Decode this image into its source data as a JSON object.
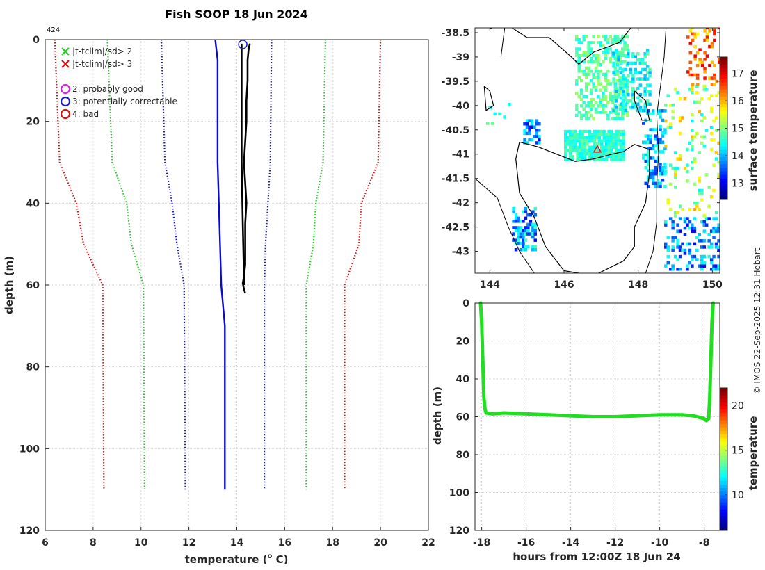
{
  "title": "Fish SOOP 18 Jun 2024",
  "profile_id": "424",
  "credit": "© IMOS 22-Sep-2025 12:31 Hobart",
  "colors": {
    "clim2": "#22cc22",
    "clim3": "#dd1111",
    "clim1": "#1a1ad6",
    "obs": "#000000",
    "mean": "#0a0acc",
    "track": "#22dd22"
  },
  "chart_data": [
    {
      "type": "line",
      "name": "profile",
      "xlabel": "temperature (°C)",
      "xlabel_main": "temperature (",
      "xlabel_sup": "o",
      "xlabel_tail": " C)",
      "ylabel": "depth (m)",
      "xlim": [
        6,
        22
      ],
      "ylim": [
        0,
        120
      ],
      "xticks": [
        "6",
        "8",
        "10",
        "12",
        "14",
        "16",
        "18",
        "20",
        "22"
      ],
      "yticks": [
        "0",
        "20",
        "40",
        "60",
        "80",
        "100",
        "120"
      ],
      "legend": [
        {
          "symbol": "x",
          "color": "#22cc22",
          "label": "|t-tclim|/sd> 2"
        },
        {
          "symbol": "x",
          "color": "#dd1111",
          "label": "|t-tclim|/sd> 3"
        },
        {
          "symbol": "o",
          "color": "#dd22dd",
          "label": "2: probably good"
        },
        {
          "symbol": "o",
          "color": "#1a1ad6",
          "label": "3: potentially correctable"
        },
        {
          "symbol": "o",
          "color": "#dd1111",
          "label": "4: bad"
        }
      ],
      "series": [
        {
          "name": "clim -3sd",
          "style": "dotted",
          "color": "#dd1111",
          "depth": [
            0,
            30,
            40,
            50,
            60,
            110
          ],
          "temp": [
            6.4,
            6.6,
            7.3,
            7.6,
            8.4,
            8.45
          ]
        },
        {
          "name": "clim -2sd",
          "style": "dotted",
          "color": "#22cc22",
          "depth": [
            0,
            30,
            40,
            50,
            60,
            110
          ],
          "temp": [
            8.6,
            8.8,
            9.4,
            9.6,
            10.1,
            10.15
          ]
        },
        {
          "name": "clim -1sd",
          "style": "dotted",
          "color": "#1a1ad6",
          "depth": [
            0,
            30,
            40,
            50,
            60,
            110
          ],
          "temp": [
            10.85,
            11.0,
            11.3,
            11.5,
            11.8,
            11.85
          ]
        },
        {
          "name": "clim mean",
          "style": "solid",
          "color": "#0a0acc",
          "depth": [
            0,
            5,
            30,
            40,
            50,
            60,
            70,
            110
          ],
          "temp": [
            13.1,
            13.2,
            13.2,
            13.25,
            13.3,
            13.35,
            13.5,
            13.5
          ]
        },
        {
          "name": "clim +1sd",
          "style": "dotted",
          "color": "#1a1ad6",
          "depth": [
            0,
            30,
            40,
            50,
            60,
            110
          ],
          "temp": [
            15.45,
            15.4,
            15.3,
            15.2,
            15.15,
            15.15
          ]
        },
        {
          "name": "clim +2sd",
          "style": "dotted",
          "color": "#22cc22",
          "depth": [
            0,
            30,
            40,
            50,
            60,
            110
          ],
          "temp": [
            17.7,
            17.6,
            17.3,
            17.2,
            16.9,
            16.9
          ]
        },
        {
          "name": "clim +3sd",
          "style": "dotted",
          "color": "#dd1111",
          "depth": [
            0,
            30,
            40,
            50,
            60,
            110
          ],
          "temp": [
            20.0,
            19.9,
            19.2,
            19.1,
            18.5,
            18.5
          ]
        },
        {
          "name": "observed",
          "style": "solid",
          "color": "#000000",
          "depth": [
            1,
            2,
            5,
            10,
            15,
            20,
            25,
            30,
            35,
            40,
            45,
            50,
            55,
            58,
            59.5,
            61,
            62
          ],
          "temp": [
            14.55,
            14.5,
            14.45,
            14.45,
            14.4,
            14.4,
            14.35,
            14.3,
            14.35,
            14.4,
            14.35,
            14.35,
            14.35,
            14.3,
            14.25,
            14.3,
            14.35
          ]
        },
        {
          "name": "observed down",
          "style": "solid",
          "color": "#000000",
          "depth": [
            1,
            5,
            15,
            30,
            45,
            58,
            60
          ],
          "temp": [
            14.2,
            14.2,
            14.2,
            14.2,
            14.25,
            14.3,
            14.3
          ]
        }
      ],
      "flag_marker": {
        "temp": 14.25,
        "depth": 1,
        "flag": "3: potentially correctable"
      }
    },
    {
      "type": "heatmap",
      "name": "map",
      "xlim": [
        143.6,
        150.2
      ],
      "ylim": [
        -43.45,
        -38.4
      ],
      "xticks": [
        "144",
        "146",
        "148",
        "150"
      ],
      "yticks": [
        "-38.5",
        "-39",
        "-39.5",
        "-40",
        "-40.5",
        "-41",
        "-41.5",
        "-42",
        "-42.5",
        "-43"
      ],
      "colorbar": {
        "label": "surface temperature",
        "ticks": [
          "13",
          "14",
          "15",
          "16",
          "17"
        ],
        "range": [
          12.4,
          17.6
        ]
      },
      "location": {
        "lon": 146.9,
        "lat": -40.9
      }
    },
    {
      "type": "scatter",
      "name": "track",
      "xlabel": "hours from 12:00Z 18 Jun 24",
      "ylabel": "depth (m)",
      "xlim": [
        -18.3,
        -7.3
      ],
      "ylim": [
        0,
        120
      ],
      "xticks": [
        "-18",
        "-16",
        "-14",
        "-12",
        "-10",
        "-8"
      ],
      "yticks": [
        "0",
        "20",
        "40",
        "60",
        "80",
        "100",
        "120"
      ],
      "colorbar": {
        "label": "temperature",
        "ticks": [
          "10",
          "15",
          "20"
        ],
        "range": [
          6,
          22
        ]
      },
      "hours": [
        -18.05,
        -18.0,
        -17.95,
        -17.9,
        -17.85,
        -17.8,
        -17.5,
        -17.0,
        -16.0,
        -15.0,
        -14.0,
        -13.0,
        -12.0,
        -11.0,
        -10.0,
        -9.0,
        -8.5,
        -8.0,
        -7.9,
        -7.8,
        -7.75,
        -7.7,
        -7.65,
        -7.6
      ],
      "depths": [
        0,
        10,
        30,
        50,
        56,
        58,
        58.5,
        58,
        58.5,
        59,
        59.5,
        60,
        60,
        59.5,
        59,
        59,
        59.5,
        61,
        62,
        61,
        50,
        30,
        10,
        0
      ]
    }
  ]
}
